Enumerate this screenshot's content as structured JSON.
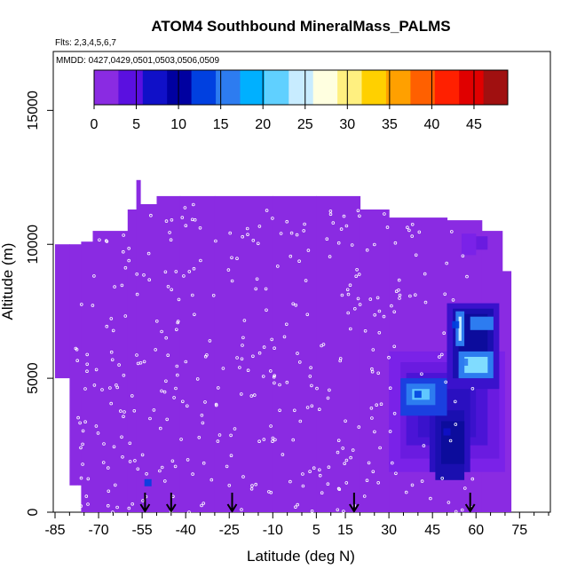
{
  "chart_data": {
    "type": "heatmap",
    "title": "ATOM4 Southbound MineralMass_PALMS",
    "subtitle_flights": "Flts: 2,3,4,5,6,7",
    "subtitle_dates": "MMDD: 0427,0429,0501,0503,0506,0509",
    "xlabel": "Latitude (deg N)",
    "ylabel": "Altitude (m)",
    "xlim": [
      -85,
      85
    ],
    "ylim": [
      0,
      17000
    ],
    "x_ticks": [
      "-85",
      "-70",
      "-55",
      "-40",
      "-25",
      "-10",
      "5",
      "15",
      "30",
      "45",
      "60",
      "75"
    ],
    "x_tick_values": [
      -85,
      -70,
      -55,
      -40,
      -25,
      -10,
      5,
      15,
      30,
      45,
      60,
      75
    ],
    "y_ticks": [
      "0",
      "5000",
      "10000",
      "15000"
    ],
    "y_tick_values": [
      0,
      5000,
      10000,
      15000
    ],
    "colorbar": {
      "min": 0,
      "max": 49,
      "tick_labels": [
        "0",
        "5",
        "10",
        "15",
        "20",
        "25",
        "30",
        "35",
        "40",
        "45"
      ],
      "tick_values": [
        0,
        5,
        10,
        15,
        20,
        25,
        30,
        35,
        40,
        45
      ],
      "colors": [
        "#8a2be2",
        "#5a10e0",
        "#1010c8",
        "#0000a0",
        "#0040e0",
        "#2d7cf0",
        "#00b0ff",
        "#60d0ff",
        "#c8ecff",
        "#ffffe0",
        "#fff080",
        "#ffd000",
        "#ffa000",
        "#ff6000",
        "#ff2000",
        "#e00000",
        "#a01010"
      ]
    },
    "background_value_color": "#8a2be2",
    "flight_markers_lat": [
      -54,
      -45,
      -24,
      18,
      58
    ],
    "hotspots": [
      {
        "lat": 56,
        "alt": 5600,
        "value": 16
      },
      {
        "lat": 53,
        "alt": 7000,
        "value": 14
      },
      {
        "lat": 40,
        "alt": 4400,
        "value": 13
      },
      {
        "lat": 50,
        "alt": 3000,
        "value": 6
      },
      {
        "lat": -53,
        "alt": 1100,
        "value": 14
      }
    ]
  }
}
